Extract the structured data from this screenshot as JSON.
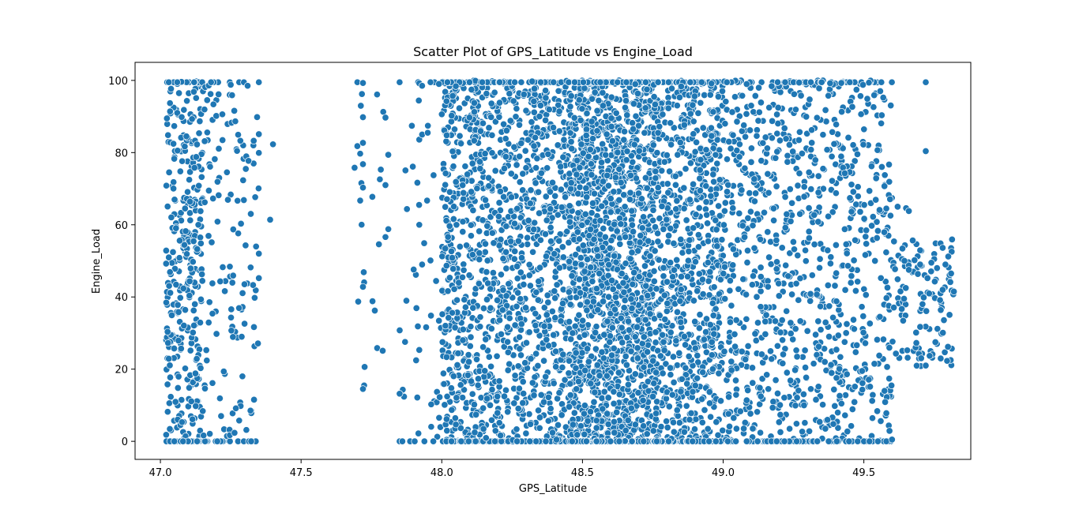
{
  "chart_data": {
    "type": "scatter",
    "title": "Scatter Plot of GPS_Latitude vs Engine_Load",
    "xlabel": "GPS_Latitude",
    "ylabel": "Engine_Load",
    "xlim": [
      46.91,
      49.88
    ],
    "ylim": [
      -5,
      105
    ],
    "xticks": [
      47.0,
      47.5,
      48.0,
      48.5,
      49.0,
      49.5
    ],
    "xtick_labels": [
      "47.0",
      "47.5",
      "48.0",
      "48.5",
      "49.0",
      "49.5"
    ],
    "yticks": [
      0,
      20,
      40,
      60,
      80,
      100
    ],
    "ytick_labels": [
      "0",
      "20",
      "40",
      "60",
      "80",
      "100"
    ],
    "grid": false,
    "marker_color": "#1f77b4",
    "marker_edge_color": "#ffffff",
    "point_clusters": [
      {
        "lat_min": 47.02,
        "lat_max": 47.15,
        "load_min": 0,
        "load_max": 100,
        "count": 360
      },
      {
        "lat_min": 47.15,
        "lat_max": 47.35,
        "load_min": 0,
        "load_max": 100,
        "count": 150
      },
      {
        "lat_min": 47.68,
        "lat_max": 47.81,
        "load_min": 14,
        "load_max": 100,
        "count": 18
      },
      {
        "lat_min": 47.85,
        "lat_max": 48.0,
        "load_min": 0,
        "load_max": 100,
        "count": 40
      },
      {
        "lat_min": 48.0,
        "lat_max": 48.45,
        "load_min": 0,
        "load_max": 100,
        "count": 1400
      },
      {
        "lat_min": 48.45,
        "lat_max": 48.75,
        "load_min": 0,
        "load_max": 100,
        "count": 1700
      },
      {
        "lat_min": 48.75,
        "lat_max": 49.0,
        "load_min": 0,
        "load_max": 100,
        "count": 900
      },
      {
        "lat_min": 49.0,
        "lat_max": 49.3,
        "load_min": 0,
        "load_max": 100,
        "count": 550
      },
      {
        "lat_min": 49.3,
        "lat_max": 49.6,
        "load_min": 0,
        "load_max": 100,
        "count": 450
      },
      {
        "lat_min": 49.6,
        "lat_max": 49.82,
        "load_min": 20,
        "load_max": 56,
        "count": 110
      }
    ],
    "points": [
      [
        47.03,
        99.5
      ],
      [
        47.06,
        99.5
      ],
      [
        47.12,
        99.5
      ],
      [
        47.18,
        99.5
      ],
      [
        47.25,
        98.8
      ],
      [
        47.31,
        98.5
      ],
      [
        47.35,
        99.5
      ],
      [
        47.4,
        82.3
      ],
      [
        47.39,
        61.4
      ],
      [
        47.35,
        85.1
      ],
      [
        47.35,
        52.0
      ],
      [
        47.35,
        45.2
      ],
      [
        47.7,
        99.5
      ],
      [
        47.72,
        99.3
      ],
      [
        47.77,
        96.1
      ],
      [
        47.72,
        89.8
      ],
      [
        47.8,
        89.7
      ],
      [
        47.7,
        81.8
      ],
      [
        47.72,
        82.7
      ],
      [
        47.71,
        79.7
      ],
      [
        47.81,
        79.4
      ],
      [
        47.72,
        76.8
      ],
      [
        47.69,
        75.8
      ],
      [
        47.78,
        72.6
      ],
      [
        47.8,
        71.0
      ],
      [
        47.72,
        70.3
      ],
      [
        47.71,
        66.7
      ],
      [
        47.81,
        58.8
      ],
      [
        47.8,
        56.6
      ],
      [
        47.72,
        42.8
      ],
      [
        47.79,
        25.1
      ],
      [
        47.72,
        14.5
      ],
      [
        47.85,
        13.2
      ],
      [
        47.85,
        99.5
      ],
      [
        47.85,
        0.0
      ],
      [
        47.86,
        0.0
      ],
      [
        47.92,
        99.2
      ],
      [
        47.93,
        98.5
      ],
      [
        47.96,
        99.5
      ],
      [
        47.99,
        99.0
      ],
      [
        47.92,
        83.6
      ],
      [
        47.93,
        85.0
      ],
      [
        47.95,
        85.5
      ],
      [
        47.92,
        60.0
      ],
      [
        47.93,
        49.0
      ],
      [
        47.96,
        50.1
      ],
      [
        47.9,
        47.6
      ],
      [
        47.91,
        36.9
      ],
      [
        47.92,
        25.3
      ],
      [
        47.97,
        0.0
      ],
      [
        48.0,
        90.6
      ],
      [
        47.99,
        33.4
      ],
      [
        49.25,
        99.5
      ],
      [
        49.27,
        99.4
      ],
      [
        49.35,
        99.5
      ],
      [
        49.38,
        99.2
      ],
      [
        49.42,
        99.3
      ],
      [
        49.45,
        99.5
      ],
      [
        49.72,
        99.5
      ],
      [
        49.72,
        80.4
      ],
      [
        49.72,
        21.0
      ],
      [
        49.62,
        65.0
      ],
      [
        49.65,
        64.6
      ],
      [
        49.66,
        63.8
      ],
      [
        49.58,
        64.5
      ],
      [
        49.55,
        58.3
      ],
      [
        49.78,
        53.6
      ],
      [
        49.8,
        51.2
      ],
      [
        49.79,
        49.0
      ],
      [
        49.81,
        46.5
      ],
      [
        49.78,
        42.0
      ],
      [
        49.82,
        41.5
      ],
      [
        49.75,
        50.5
      ],
      [
        49.76,
        48.0
      ],
      [
        49.74,
        49.5
      ],
      [
        49.7,
        49.0
      ],
      [
        49.68,
        50.2
      ],
      [
        49.66,
        47.5
      ],
      [
        49.52,
        0.0
      ],
      [
        49.55,
        0.0
      ],
      [
        49.58,
        0.0
      ],
      [
        49.6,
        0.5
      ],
      [
        49.58,
        7.8
      ],
      [
        49.56,
        5.6
      ],
      [
        49.59,
        17.4
      ]
    ]
  }
}
